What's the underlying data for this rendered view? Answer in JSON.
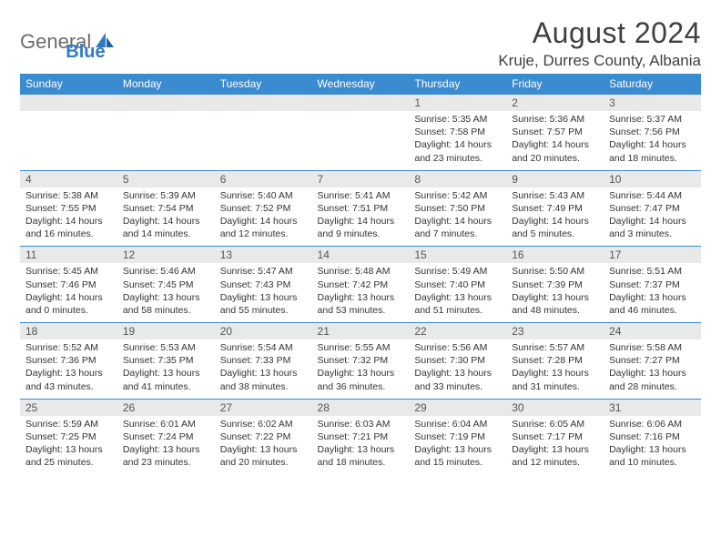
{
  "brand": {
    "main": "General",
    "accent": "Blue"
  },
  "title": "August 2024",
  "location": "Kruje, Durres County, Albania",
  "colors": {
    "header_bg": "#3b8bd0",
    "header_fg": "#ffffff",
    "daynum_bg": "#e9e9e9",
    "text": "#333333",
    "rule": "#3b8bd0",
    "logo_gray": "#6b6b6b",
    "logo_blue": "#2f7cc4"
  },
  "dow": [
    "Sunday",
    "Monday",
    "Tuesday",
    "Wednesday",
    "Thursday",
    "Friday",
    "Saturday"
  ],
  "weeks": [
    [
      null,
      null,
      null,
      null,
      {
        "n": "1",
        "sr": "5:35 AM",
        "ss": "7:58 PM",
        "dh": "14",
        "dm": "23"
      },
      {
        "n": "2",
        "sr": "5:36 AM",
        "ss": "7:57 PM",
        "dh": "14",
        "dm": "20"
      },
      {
        "n": "3",
        "sr": "5:37 AM",
        "ss": "7:56 PM",
        "dh": "14",
        "dm": "18"
      }
    ],
    [
      {
        "n": "4",
        "sr": "5:38 AM",
        "ss": "7:55 PM",
        "dh": "14",
        "dm": "16"
      },
      {
        "n": "5",
        "sr": "5:39 AM",
        "ss": "7:54 PM",
        "dh": "14",
        "dm": "14"
      },
      {
        "n": "6",
        "sr": "5:40 AM",
        "ss": "7:52 PM",
        "dh": "14",
        "dm": "12"
      },
      {
        "n": "7",
        "sr": "5:41 AM",
        "ss": "7:51 PM",
        "dh": "14",
        "dm": "9"
      },
      {
        "n": "8",
        "sr": "5:42 AM",
        "ss": "7:50 PM",
        "dh": "14",
        "dm": "7"
      },
      {
        "n": "9",
        "sr": "5:43 AM",
        "ss": "7:49 PM",
        "dh": "14",
        "dm": "5"
      },
      {
        "n": "10",
        "sr": "5:44 AM",
        "ss": "7:47 PM",
        "dh": "14",
        "dm": "3"
      }
    ],
    [
      {
        "n": "11",
        "sr": "5:45 AM",
        "ss": "7:46 PM",
        "dh": "14",
        "dm": "0"
      },
      {
        "n": "12",
        "sr": "5:46 AM",
        "ss": "7:45 PM",
        "dh": "13",
        "dm": "58"
      },
      {
        "n": "13",
        "sr": "5:47 AM",
        "ss": "7:43 PM",
        "dh": "13",
        "dm": "55"
      },
      {
        "n": "14",
        "sr": "5:48 AM",
        "ss": "7:42 PM",
        "dh": "13",
        "dm": "53"
      },
      {
        "n": "15",
        "sr": "5:49 AM",
        "ss": "7:40 PM",
        "dh": "13",
        "dm": "51"
      },
      {
        "n": "16",
        "sr": "5:50 AM",
        "ss": "7:39 PM",
        "dh": "13",
        "dm": "48"
      },
      {
        "n": "17",
        "sr": "5:51 AM",
        "ss": "7:37 PM",
        "dh": "13",
        "dm": "46"
      }
    ],
    [
      {
        "n": "18",
        "sr": "5:52 AM",
        "ss": "7:36 PM",
        "dh": "13",
        "dm": "43"
      },
      {
        "n": "19",
        "sr": "5:53 AM",
        "ss": "7:35 PM",
        "dh": "13",
        "dm": "41"
      },
      {
        "n": "20",
        "sr": "5:54 AM",
        "ss": "7:33 PM",
        "dh": "13",
        "dm": "38"
      },
      {
        "n": "21",
        "sr": "5:55 AM",
        "ss": "7:32 PM",
        "dh": "13",
        "dm": "36"
      },
      {
        "n": "22",
        "sr": "5:56 AM",
        "ss": "7:30 PM",
        "dh": "13",
        "dm": "33"
      },
      {
        "n": "23",
        "sr": "5:57 AM",
        "ss": "7:28 PM",
        "dh": "13",
        "dm": "31"
      },
      {
        "n": "24",
        "sr": "5:58 AM",
        "ss": "7:27 PM",
        "dh": "13",
        "dm": "28"
      }
    ],
    [
      {
        "n": "25",
        "sr": "5:59 AM",
        "ss": "7:25 PM",
        "dh": "13",
        "dm": "25"
      },
      {
        "n": "26",
        "sr": "6:01 AM",
        "ss": "7:24 PM",
        "dh": "13",
        "dm": "23"
      },
      {
        "n": "27",
        "sr": "6:02 AM",
        "ss": "7:22 PM",
        "dh": "13",
        "dm": "20"
      },
      {
        "n": "28",
        "sr": "6:03 AM",
        "ss": "7:21 PM",
        "dh": "13",
        "dm": "18"
      },
      {
        "n": "29",
        "sr": "6:04 AM",
        "ss": "7:19 PM",
        "dh": "13",
        "dm": "15"
      },
      {
        "n": "30",
        "sr": "6:05 AM",
        "ss": "7:17 PM",
        "dh": "13",
        "dm": "12"
      },
      {
        "n": "31",
        "sr": "6:06 AM",
        "ss": "7:16 PM",
        "dh": "13",
        "dm": "10"
      }
    ]
  ],
  "labels": {
    "sunrise_prefix": "Sunrise: ",
    "sunset_prefix": "Sunset: ",
    "daylight_prefix": "Daylight: ",
    "hours_word": " hours",
    "and_word": "and ",
    "minutes_word": " minutes."
  }
}
